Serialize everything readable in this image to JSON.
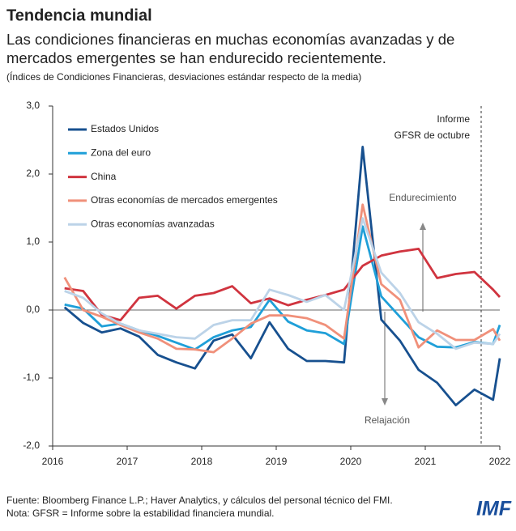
{
  "header": {
    "title": "Tendencia mundial",
    "subtitle": [
      "Las condiciones financieras en muchas economías avanzadas y de",
      "mercados emergentes se han endurecido recientemente."
    ],
    "note": "(Índices de Condiciones Financieras, desviaciones estándar respecto de la media)"
  },
  "chart_data": {
    "type": "line",
    "x": [
      2016.16,
      2016.41,
      2016.66,
      2016.91,
      2017.16,
      2017.41,
      2017.66,
      2017.91,
      2018.16,
      2018.41,
      2018.66,
      2018.91,
      2019.16,
      2019.41,
      2019.66,
      2019.91,
      2020.16,
      2020.41,
      2020.66,
      2020.91,
      2021.16,
      2021.41,
      2021.66,
      2021.91,
      2022.0
    ],
    "series": [
      {
        "name": "Estados  Unidos",
        "color": "#17508f",
        "values": [
          0.04,
          -0.19,
          -0.33,
          -0.27,
          -0.39,
          -0.66,
          -0.77,
          -0.86,
          -0.45,
          -0.36,
          -0.71,
          -0.18,
          -0.57,
          -0.75,
          -0.75,
          -0.77,
          2.4,
          -0.14,
          -0.45,
          -0.88,
          -1.07,
          -1.4,
          -1.17,
          -1.32,
          -0.71
        ]
      },
      {
        "name": "Zona del euro",
        "color": "#1f9fd8",
        "values": [
          0.08,
          0.02,
          -0.24,
          -0.2,
          -0.3,
          -0.38,
          -0.48,
          -0.58,
          -0.4,
          -0.3,
          -0.25,
          0.15,
          -0.17,
          -0.3,
          -0.34,
          -0.5,
          1.23,
          0.2,
          -0.1,
          -0.4,
          -0.54,
          -0.55,
          -0.47,
          -0.5,
          -0.22
        ]
      },
      {
        "name": "China",
        "color": "#d0343f",
        "values": [
          0.32,
          0.28,
          -0.07,
          -0.15,
          0.18,
          0.21,
          0.02,
          0.21,
          0.25,
          0.35,
          0.1,
          0.17,
          0.07,
          0.15,
          0.22,
          0.3,
          0.65,
          0.8,
          0.86,
          0.9,
          0.47,
          0.53,
          0.56,
          0.3,
          0.19
        ]
      },
      {
        "name": "Otras economías de mercados emergentes",
        "color": "#f0907a",
        "values": [
          0.48,
          0.0,
          -0.1,
          -0.22,
          -0.33,
          -0.42,
          -0.57,
          -0.58,
          -0.62,
          -0.42,
          -0.2,
          -0.08,
          -0.08,
          -0.12,
          -0.22,
          -0.42,
          1.55,
          0.38,
          0.15,
          -0.55,
          -0.3,
          -0.44,
          -0.44,
          -0.28,
          -0.45
        ]
      },
      {
        "name": "Otras economías avanzadas",
        "color": "#bcd3e8",
        "values": [
          0.28,
          0.18,
          -0.05,
          -0.2,
          -0.3,
          -0.35,
          -0.4,
          -0.42,
          -0.22,
          -0.15,
          -0.15,
          0.3,
          0.22,
          0.12,
          0.22,
          0.0,
          1.35,
          0.55,
          0.25,
          -0.18,
          -0.35,
          -0.57,
          -0.48,
          -0.5,
          -0.35
        ]
      }
    ],
    "xlim": [
      2016,
      2022
    ],
    "xticks": [
      2016,
      2017,
      2018,
      2019,
      2020,
      2021,
      2022
    ],
    "ylim": [
      -2,
      3
    ],
    "yticks": [
      {
        "value": 3,
        "label": "3,0"
      },
      {
        "value": 2,
        "label": "2,0"
      },
      {
        "value": 1,
        "label": "1,0"
      },
      {
        "value": 0,
        "label": "0,0"
      },
      {
        "value": -1,
        "label": "-1,0"
      },
      {
        "value": -2,
        "label": "-2,0"
      }
    ],
    "vline": {
      "x": 2021.75,
      "label": [
        "Informe",
        "GFSR de octubre"
      ]
    },
    "annotations": [
      "Endurecimiento",
      "Relajación"
    ]
  },
  "footer": {
    "source": "Fuente: Bloomberg Finance L.P.; Haver Analytics, y cálculos del personal técnico del FMI.",
    "note": "Nota: GFSR = Informe sobre la estabilidad financiera mundial.",
    "logo": "IMF"
  }
}
